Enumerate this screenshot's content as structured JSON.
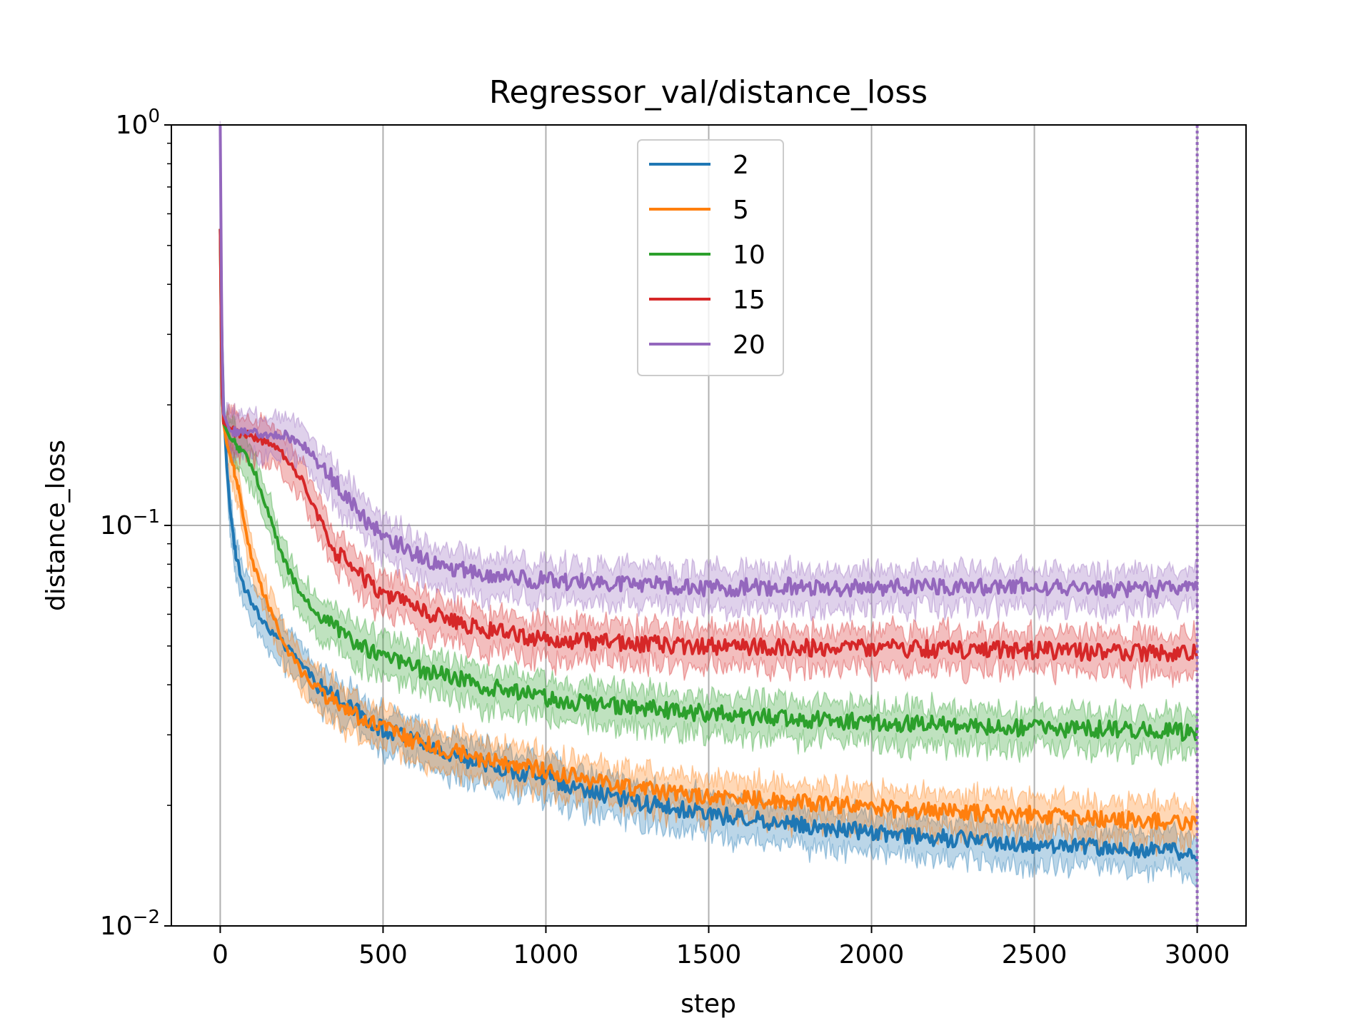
{
  "chart_data": {
    "type": "line",
    "title": "Regressor_val/distance_loss",
    "xlabel": "step",
    "ylabel": "distance_loss",
    "xlim": [
      -150,
      3150
    ],
    "ylim": [
      0.01,
      1
    ],
    "yscale": "log",
    "grid": true,
    "legend_position": "top-center",
    "x_ticks": [
      0,
      500,
      1000,
      1500,
      2000,
      2500,
      3000
    ],
    "x_tick_labels": [
      "0",
      "500",
      "1000",
      "1500",
      "2000",
      "2500",
      "3000"
    ],
    "y_ticks": [
      0.01,
      0.1,
      1
    ],
    "y_tick_labels": [
      {
        "base": "10",
        "exp": "−2"
      },
      {
        "base": "10",
        "exp": "−1"
      },
      {
        "base": "10",
        "exp": "0"
      }
    ],
    "vertical_marker": {
      "x": 3000,
      "style": "dotted",
      "color": "#9467bd"
    },
    "series": [
      {
        "name": "2",
        "color": "#1f77b4",
        "points": [
          [
            0,
            0.55
          ],
          [
            5,
            0.3
          ],
          [
            10,
            0.2
          ],
          [
            20,
            0.14
          ],
          [
            30,
            0.11
          ],
          [
            40,
            0.095
          ],
          [
            50,
            0.082
          ],
          [
            75,
            0.07
          ],
          [
            100,
            0.063
          ],
          [
            150,
            0.055
          ],
          [
            200,
            0.05
          ],
          [
            250,
            0.045
          ],
          [
            300,
            0.04
          ],
          [
            400,
            0.035
          ],
          [
            500,
            0.031
          ],
          [
            600,
            0.029
          ],
          [
            700,
            0.027
          ],
          [
            800,
            0.0255
          ],
          [
            1000,
            0.0235
          ],
          [
            1200,
            0.021
          ],
          [
            1500,
            0.019
          ],
          [
            1750,
            0.018
          ],
          [
            2000,
            0.0172
          ],
          [
            2250,
            0.0165
          ],
          [
            2500,
            0.016
          ],
          [
            2750,
            0.0156
          ],
          [
            3000,
            0.0152
          ]
        ]
      },
      {
        "name": "5",
        "color": "#ff7f0e",
        "points": [
          [
            0,
            0.55
          ],
          [
            5,
            0.25
          ],
          [
            10,
            0.18
          ],
          [
            20,
            0.16
          ],
          [
            40,
            0.14
          ],
          [
            60,
            0.12
          ],
          [
            80,
            0.095
          ],
          [
            100,
            0.08
          ],
          [
            150,
            0.062
          ],
          [
            200,
            0.05
          ],
          [
            250,
            0.043
          ],
          [
            300,
            0.039
          ],
          [
            400,
            0.034
          ],
          [
            500,
            0.031
          ],
          [
            600,
            0.029
          ],
          [
            700,
            0.0275
          ],
          [
            800,
            0.026
          ],
          [
            1000,
            0.0245
          ],
          [
            1200,
            0.0225
          ],
          [
            1500,
            0.021
          ],
          [
            1750,
            0.0205
          ],
          [
            2000,
            0.0198
          ],
          [
            2250,
            0.0192
          ],
          [
            2500,
            0.019
          ],
          [
            2750,
            0.0185
          ],
          [
            3000,
            0.018
          ]
        ]
      },
      {
        "name": "10",
        "color": "#2ca02c",
        "points": [
          [
            0,
            0.55
          ],
          [
            5,
            0.22
          ],
          [
            10,
            0.18
          ],
          [
            30,
            0.165
          ],
          [
            60,
            0.155
          ],
          [
            100,
            0.14
          ],
          [
            130,
            0.12
          ],
          [
            160,
            0.1
          ],
          [
            200,
            0.08
          ],
          [
            250,
            0.067
          ],
          [
            300,
            0.06
          ],
          [
            400,
            0.052
          ],
          [
            500,
            0.047
          ],
          [
            600,
            0.044
          ],
          [
            700,
            0.042
          ],
          [
            800,
            0.04
          ],
          [
            1000,
            0.037
          ],
          [
            1200,
            0.0355
          ],
          [
            1500,
            0.034
          ],
          [
            1750,
            0.033
          ],
          [
            2000,
            0.0322
          ],
          [
            2250,
            0.0318
          ],
          [
            2500,
            0.0312
          ],
          [
            2750,
            0.031
          ],
          [
            3000,
            0.0305
          ]
        ]
      },
      {
        "name": "15",
        "color": "#d62728",
        "points": [
          [
            0,
            0.55
          ],
          [
            5,
            0.22
          ],
          [
            10,
            0.18
          ],
          [
            50,
            0.17
          ],
          [
            100,
            0.167
          ],
          [
            150,
            0.16
          ],
          [
            200,
            0.148
          ],
          [
            250,
            0.13
          ],
          [
            280,
            0.115
          ],
          [
            300,
            0.105
          ],
          [
            330,
            0.092
          ],
          [
            360,
            0.085
          ],
          [
            400,
            0.08
          ],
          [
            450,
            0.073
          ],
          [
            500,
            0.068
          ],
          [
            600,
            0.062
          ],
          [
            700,
            0.058
          ],
          [
            800,
            0.055
          ],
          [
            1000,
            0.052
          ],
          [
            1200,
            0.051
          ],
          [
            1500,
            0.05
          ],
          [
            1750,
            0.0495
          ],
          [
            2000,
            0.0495
          ],
          [
            2250,
            0.049
          ],
          [
            2500,
            0.0488
          ],
          [
            2750,
            0.0482
          ],
          [
            3000,
            0.048
          ]
        ]
      },
      {
        "name": "20",
        "color": "#9467bd",
        "points": [
          [
            0,
            1.0
          ],
          [
            5,
            0.3
          ],
          [
            10,
            0.19
          ],
          [
            30,
            0.172
          ],
          [
            100,
            0.17
          ],
          [
            200,
            0.168
          ],
          [
            250,
            0.16
          ],
          [
            300,
            0.145
          ],
          [
            350,
            0.13
          ],
          [
            400,
            0.115
          ],
          [
            450,
            0.103
          ],
          [
            500,
            0.095
          ],
          [
            600,
            0.085
          ],
          [
            700,
            0.079
          ],
          [
            800,
            0.075
          ],
          [
            1000,
            0.073
          ],
          [
            1200,
            0.072
          ],
          [
            1500,
            0.07
          ],
          [
            1750,
            0.0705
          ],
          [
            2000,
            0.07
          ],
          [
            2250,
            0.0702
          ],
          [
            2500,
            0.0705
          ],
          [
            2750,
            0.0695
          ],
          [
            3000,
            0.069
          ]
        ]
      }
    ]
  }
}
